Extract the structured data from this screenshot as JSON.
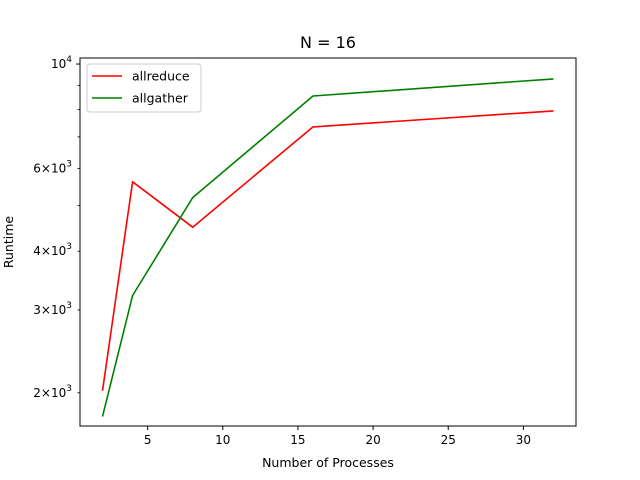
{
  "chart_data": {
    "type": "line",
    "title": "N = 16",
    "xlabel": "Number of Processes",
    "ylabel": "Runtime",
    "x": [
      2,
      4,
      8,
      16,
      32
    ],
    "series": [
      {
        "name": "allreduce",
        "color": "#ff0000",
        "values": [
          2020,
          5620,
          4500,
          7350,
          7950
        ]
      },
      {
        "name": "allgather",
        "color": "#008000",
        "values": [
          1780,
          3220,
          5200,
          8550,
          9300
        ]
      }
    ],
    "xlim": [
      0.5,
      33.5
    ],
    "ylim": [
      1700,
      10300
    ],
    "yscale": "log",
    "xticks": [
      5,
      10,
      15,
      20,
      25,
      30
    ],
    "xtick_labels": [
      "5",
      "10",
      "15",
      "20",
      "25",
      "30"
    ],
    "yticks_major": [
      {
        "value": 10000,
        "base": "10",
        "exp": "4"
      }
    ],
    "yticks_minor": [
      {
        "value": 2000,
        "mant": "2",
        "base": "10",
        "exp": "3"
      },
      {
        "value": 3000,
        "mant": "3",
        "base": "10",
        "exp": "3"
      },
      {
        "value": 4000,
        "mant": "4",
        "base": "10",
        "exp": "3"
      },
      {
        "value": 6000,
        "mant": "6",
        "base": "10",
        "exp": "3"
      }
    ],
    "yticks_minor_unlabeled": [
      5000,
      7000,
      8000,
      9000
    ],
    "legend_position": "top-left",
    "grid": false
  }
}
